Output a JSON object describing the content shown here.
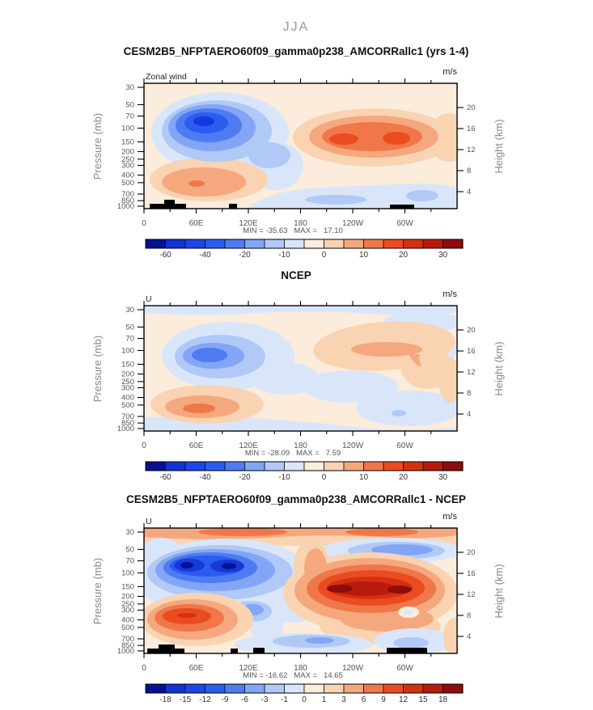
{
  "season_title": "JJA",
  "palette": {
    "cream": "#fcecdb",
    "b1": "#d9e6fa",
    "b2": "#b0c9f7",
    "b3": "#83a5f5",
    "b4": "#4d7bf2",
    "b5": "#2a5cf0",
    "b6": "#1739dc",
    "b7": "#071292",
    "o1": "#f9d3b2",
    "o2": "#f5a87d",
    "o3": "#f0774a",
    "o4": "#ea4c1f",
    "o5": "#d63010",
    "o6": "#b81b0c",
    "o7": "#8d0d0c"
  },
  "colorbar_colors_16": [
    "#071292",
    "#1333d6",
    "#1c46e8",
    "#2a5cf0",
    "#4d7bf2",
    "#83a5f5",
    "#b0c9f7",
    "#d9e6fa",
    "#fcecdb",
    "#f9d3b2",
    "#f5a87d",
    "#f0774a",
    "#ea4c1f",
    "#d63010",
    "#b81b0c",
    "#8d0d0c"
  ],
  "chart_data": [
    {
      "type": "filled_contour",
      "title": "CESM2B5_NFPTAERO60f09_gamma0p238_AMCORRallc1 (yrs 1-4)",
      "field_label": "Zonal wind",
      "units": "m/s",
      "x": {
        "ticks": [
          "0",
          "60E",
          "120E",
          "180",
          "120W",
          "60W"
        ],
        "minor_interval_deg": 30,
        "range_deg": [
          0,
          360
        ]
      },
      "y_left": {
        "label": "Pressure (mb)",
        "scale": "log",
        "ticks": [
          30,
          50,
          70,
          100,
          150,
          200,
          250,
          300,
          400,
          500,
          700,
          850,
          1000
        ]
      },
      "y_right": {
        "label": "Height (km)",
        "ticks": [
          20,
          16,
          12,
          8,
          4
        ]
      },
      "stats": {
        "min": -35.63,
        "max": 17.1,
        "annotation": "MIN = -35.63   MAX =   17.10"
      },
      "colorbar": {
        "labels": [
          "-60",
          "-40",
          "-20",
          "-10",
          "0",
          "10",
          "20",
          "30"
        ]
      },
      "features": [
        "Strong easterly core (about -35 m/s, darkest blue) centered near 60E-90E at 100-150 mb",
        "Westerly band (up to +17 m/s) spanning 180 to 60W at 100-200 mb with two orange-red maxima near 140W and 75W",
        "Weak westerlies (light orange) over 0-120E below 400 mb with small maximum near 40E at 600 mb",
        "Shallow easterlies (pale blue) along the surface from 140E to 30W and near 60W-20W",
        "Black surface topography marks near 5E-30E, 100E and 70W-60W"
      ]
    },
    {
      "type": "filled_contour",
      "title": "NCEP",
      "field_label": "U",
      "units": "m/s",
      "x": {
        "ticks": [
          "0",
          "60E",
          "120E",
          "180",
          "120W",
          "60W"
        ],
        "minor_interval_deg": 30,
        "range_deg": [
          0,
          360
        ]
      },
      "y_left": {
        "label": "Pressure (mb)",
        "scale": "log",
        "ticks": [
          30,
          50,
          70,
          100,
          150,
          200,
          250,
          300,
          400,
          500,
          700,
          850,
          1000
        ]
      },
      "y_right": {
        "label": "Height (km)",
        "ticks": [
          20,
          16,
          12,
          8,
          4
        ]
      },
      "stats": {
        "min": -28.09,
        "max": 7.59,
        "annotation": "MIN = -28.09   MAX =   7.59"
      },
      "colorbar": {
        "labels": [
          "-60",
          "-40",
          "-20",
          "-10",
          "0",
          "10",
          "20",
          "30"
        ]
      },
      "features": [
        "Easterly core (about -28 m/s, medium blue) centered near 60E at 150 mb",
        "Pale-blue easterly band along the 30 mb top of the section across all longitudes",
        "Westerly arc (light orange/salmon) from 180 to 30W at 70-150 mb curving down toward 60W",
        "Weak westerly maximum (salmon) near 30E-80E at 600-850 mb",
        "Shallow surface easterlies (pale blue) from 0 to 120E and near 90W"
      ]
    },
    {
      "type": "filled_contour_difference",
      "title": "CESM2B5_NFPTAERO60f09_gamma0p238_AMCORRallc1 - NCEP",
      "field_label": "U",
      "units": "m/s",
      "x": {
        "ticks": [
          "0",
          "60E",
          "120E",
          "180",
          "120W",
          "60W"
        ],
        "minor_interval_deg": 30,
        "range_deg": [
          0,
          360
        ]
      },
      "y_left": {
        "label": "Pressure (mb)",
        "scale": "log",
        "ticks": [
          30,
          50,
          70,
          100,
          150,
          200,
          250,
          300,
          400,
          500,
          700,
          850,
          1000
        ]
      },
      "y_right": {
        "label": "Height (km)",
        "ticks": [
          20,
          16,
          12,
          8,
          4
        ]
      },
      "stats": {
        "min": -16.62,
        "max": 14.65,
        "annotation": "MIN = -16.62   MAX =   14.65"
      },
      "colorbar": {
        "labels": [
          "-18",
          "-15",
          "-12",
          "-9",
          "-6",
          "-3",
          "-1",
          "0",
          "1",
          "3",
          "6",
          "9",
          "12",
          "15",
          "18"
        ]
      },
      "features": [
        "Large easterly bias (dark blue, about -16 m/s) over 10E-120E at 70-200 mb with two navy cores near 30E and 60E at 100 mb",
        "Westerly bias (dark red, about +15 m/s) from 160E to 40W at 100-300 mb with two deep-red cores near 170W and 110W",
        "Orange westerly-bias band along the 30 mb top across all longitudes",
        "Blue easterly-bias band at 50-70 mb from 170W to 60W",
        "Westerly bias (orange-red) over 0-60E at 300-700 mb",
        "Shallow easterly bias (blue) along the surface near 120E-180 and 60W-20W",
        "Black surface topography marks near 5E-30E, 100E, 125E and 70W-55W"
      ]
    }
  ]
}
